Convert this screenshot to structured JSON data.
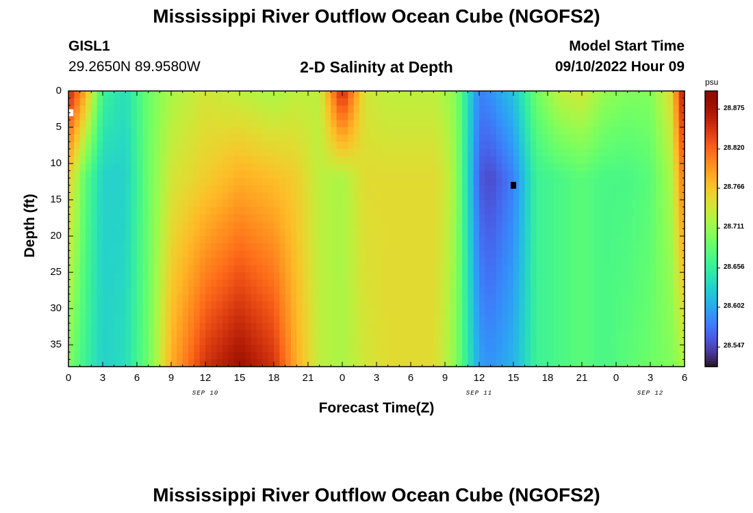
{
  "header": {
    "title_top": "Mississippi River Outflow Ocean Cube (NGOFS2)",
    "title_bottom": "Mississippi River Outflow Ocean Cube (NGOFS2)",
    "station_id": "GISL1",
    "coordinates": "29.2650N  89.9580W",
    "plot_subtitle": "2-D Salinity at Depth",
    "model_start_label": "Model Start Time",
    "model_start_value": "09/10/2022 Hour 09"
  },
  "chart_data": {
    "type": "heatmap",
    "title": "2-D Salinity at Depth",
    "xlabel": "Forecast Time(Z)",
    "ylabel": "Depth (ft)",
    "x_tick_labels": [
      "0",
      "3",
      "6",
      "9",
      "12",
      "15",
      "18",
      "21",
      "0",
      "3",
      "6",
      "9",
      "12",
      "15",
      "18",
      "21",
      "0",
      "3",
      "6"
    ],
    "x_range_hours": [
      0,
      54
    ],
    "date_labels": [
      {
        "text": "SEP 10",
        "hour": 12
      },
      {
        "text": "SEP 11",
        "hour": 36
      },
      {
        "text": "SEP 12",
        "hour": 51
      }
    ],
    "y_tick_labels": [
      "0",
      "5",
      "10",
      "15",
      "20",
      "25",
      "30",
      "35"
    ],
    "y_range_ft": [
      0,
      38
    ],
    "colorbar": {
      "unit": "psu",
      "ticks": [
        "28.875",
        "28.820",
        "28.766",
        "28.711",
        "28.656",
        "28.602",
        "28.547"
      ],
      "range": [
        28.52,
        28.9
      ]
    },
    "time_profiles": {
      "hours": [
        0,
        1.5,
        3,
        5,
        7,
        9,
        12,
        15,
        18,
        20,
        22,
        24,
        26,
        28,
        30,
        32,
        33,
        34,
        36,
        37,
        39,
        41,
        43,
        45,
        47,
        49,
        51,
        52.8,
        54
      ],
      "surface_psu": [
        28.86,
        28.78,
        28.66,
        28.64,
        28.69,
        28.72,
        28.74,
        28.73,
        28.72,
        28.73,
        28.73,
        28.86,
        28.74,
        28.73,
        28.73,
        28.73,
        28.72,
        28.7,
        28.58,
        28.59,
        28.62,
        28.69,
        28.73,
        28.74,
        28.71,
        28.7,
        28.7,
        28.75,
        28.88
      ],
      "mid_psu": [
        28.76,
        28.68,
        28.63,
        28.63,
        28.69,
        28.74,
        28.76,
        28.78,
        28.77,
        28.76,
        28.73,
        28.72,
        28.75,
        28.75,
        28.75,
        28.75,
        28.74,
        28.71,
        28.56,
        28.55,
        28.58,
        28.66,
        28.67,
        28.68,
        28.67,
        28.67,
        28.68,
        28.72,
        28.82
      ],
      "bottom_psu": [
        28.7,
        28.66,
        28.63,
        28.64,
        28.69,
        28.78,
        28.85,
        28.88,
        28.85,
        28.78,
        28.73,
        28.72,
        28.74,
        28.75,
        28.75,
        28.75,
        28.73,
        28.7,
        28.6,
        28.59,
        28.61,
        28.66,
        28.67,
        28.68,
        28.67,
        28.68,
        28.69,
        28.7,
        28.72
      ]
    },
    "markers": [
      {
        "hour": 39,
        "depth_ft": 13,
        "color": "#000000"
      },
      {
        "hour": 0.2,
        "depth_ft": 3,
        "color": "#ffffff"
      }
    ]
  }
}
